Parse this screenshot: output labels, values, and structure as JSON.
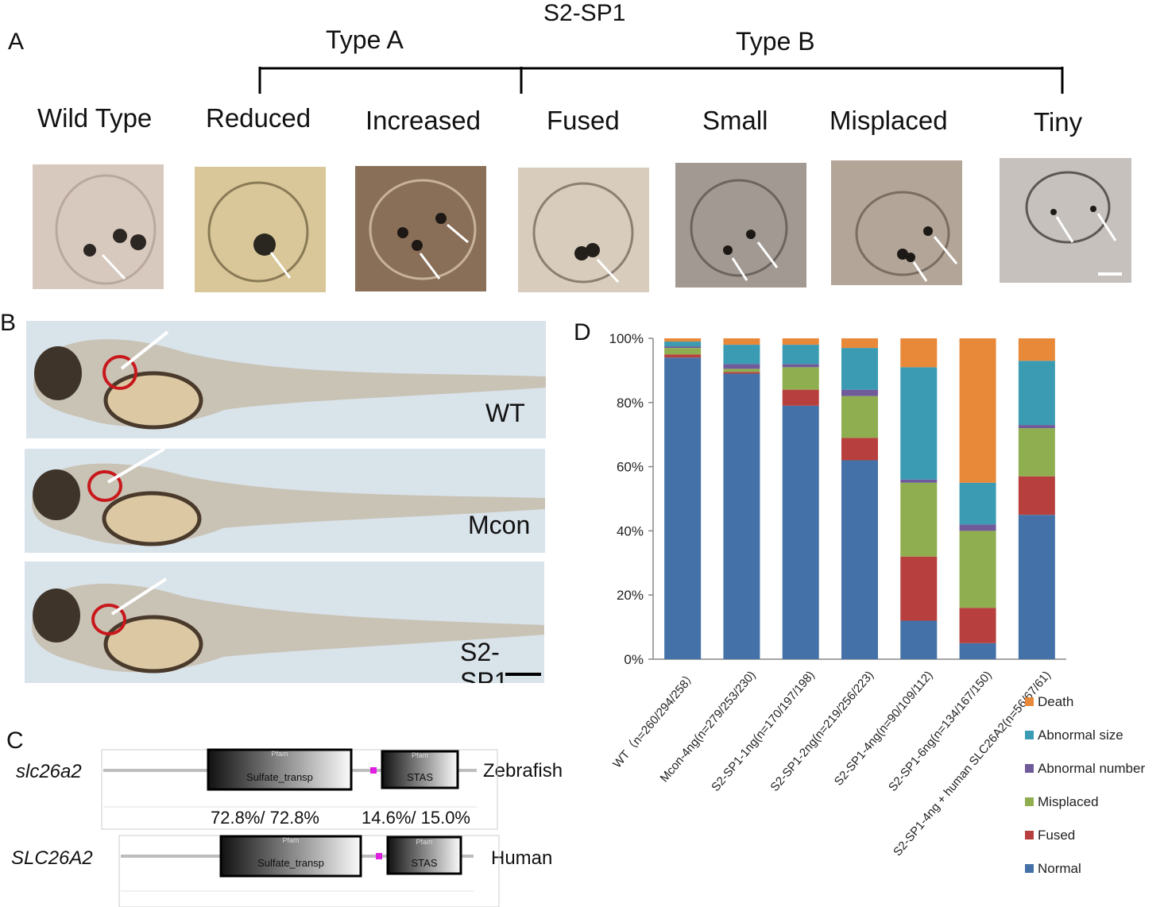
{
  "panel_a": {
    "letter": "A",
    "title": "S2-SP1",
    "type_a": "Type A",
    "type_b": "Type B",
    "labels": [
      "Wild Type",
      "Reduced",
      "Increased",
      "Fused",
      "Small",
      "Misplaced",
      "Tiny"
    ]
  },
  "panel_b": {
    "letter": "B",
    "labels": [
      "WT",
      "Mcon",
      "S2-SP1"
    ]
  },
  "panel_c": {
    "letter": "C",
    "gene1": "slc26a2",
    "gene2": "SLC26A2",
    "species1": "Zebrafish",
    "species2": "Human",
    "domain1": "Sulfate_transp",
    "domain2": "STAS",
    "pfam": "Pfam",
    "identity1": "72.8%/ 72.8%",
    "identity2": "14.6%/ 15.0%"
  },
  "panel_d": {
    "letter": "D"
  },
  "chart_data": {
    "type": "bar",
    "stacked": true,
    "ylim": [
      0,
      100
    ],
    "yticks": [
      "0%",
      "20%",
      "40%",
      "60%",
      "80%",
      "100%"
    ],
    "categories": [
      "WT（n=260/294/258）",
      "Mcon-4ng(n=279/253/230)",
      "S2-SP1-1ng(n=170/197/198)",
      "S2-SP1-2ng(n=219/256/223)",
      "S2-SP1-4ng(n=90/109/112)",
      "S2-SP1-6ng(n=134/167/150)",
      "S2-SP1-4ng + human SLC26A2(n=56/67/61)"
    ],
    "series": [
      {
        "name": "Normal",
        "color": "#4472a8",
        "values": [
          94,
          89,
          79,
          62,
          12,
          5,
          45
        ]
      },
      {
        "name": "Fused",
        "color": "#b7403f",
        "values": [
          1,
          0.5,
          5,
          7,
          20,
          11,
          12
        ]
      },
      {
        "name": "Misplaced",
        "color": "#8fae4f",
        "values": [
          2,
          1,
          7,
          13,
          23,
          24,
          15
        ]
      },
      {
        "name": "Abnormal number",
        "color": "#6f5b9a",
        "values": [
          0.5,
          1.5,
          1,
          2,
          1,
          2,
          1
        ]
      },
      {
        "name": "Abnormal size",
        "color": "#3a9bb3",
        "values": [
          1.5,
          6,
          6,
          13,
          35,
          13,
          20
        ]
      },
      {
        "name": "Death",
        "color": "#e8893a",
        "values": [
          1,
          2,
          2,
          3,
          9,
          45,
          7
        ]
      }
    ]
  }
}
